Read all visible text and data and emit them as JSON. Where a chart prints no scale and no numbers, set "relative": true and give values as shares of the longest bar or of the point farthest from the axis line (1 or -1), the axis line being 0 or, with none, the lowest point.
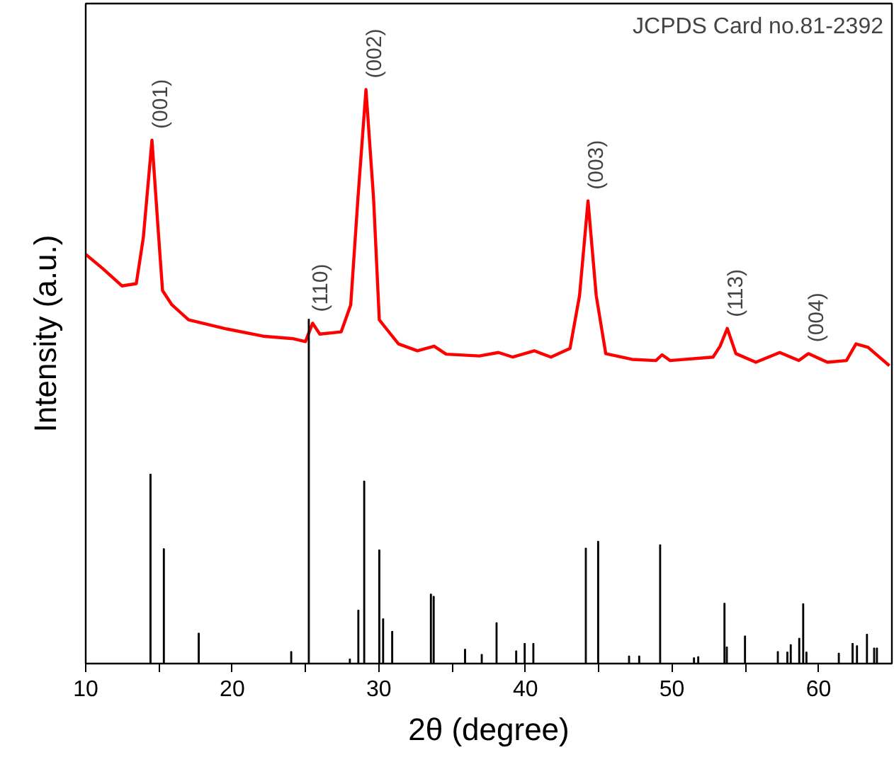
{
  "chart_data": {
    "type": "line",
    "relative": true,
    "xlabel": "2θ (degree)",
    "ylabel": "Intensity (a.u.)",
    "xlim": [
      10,
      65
    ],
    "xticks": [
      10,
      {
        "value": 15,
        "label": null
      },
      20,
      {
        "value": 25,
        "label": null
      },
      30,
      {
        "value": 35,
        "label": null
      },
      40,
      {
        "value": 45,
        "label": null
      },
      50,
      {
        "value": 55,
        "label": null
      },
      60
    ],
    "tick_labels": "x",
    "grid": false,
    "marker": "none",
    "line_style": "solid",
    "series": [
      {
        "color": "#ff0000",
        "x": [
          10.0,
          11.17,
          12.47,
          13.45,
          13.93,
          14.52,
          14.91,
          15.24,
          15.88,
          17.02,
          19.63,
          22.22,
          24.18,
          24.99,
          25.48,
          25.97,
          27.43,
          28.08,
          28.57,
          29.12,
          29.64,
          30.03,
          30.52,
          31.34,
          32.63,
          33.77,
          34.59,
          36.86,
          38.16,
          39.14,
          40.6,
          41.74,
          43.04,
          43.69,
          44.27,
          44.83,
          45.48,
          47.27,
          48.9,
          49.32,
          49.87,
          52.8,
          53.28,
          53.77,
          54.36,
          55.72,
          57.35,
          58.65,
          59.3,
          60.6,
          61.9,
          62.55,
          63.37,
          64.83
        ],
        "values": [
          0.713,
          0.688,
          0.658,
          0.662,
          0.742,
          0.912,
          0.768,
          0.65,
          0.625,
          0.599,
          0.583,
          0.57,
          0.566,
          0.561,
          0.593,
          0.574,
          0.578,
          0.625,
          0.81,
          1.0,
          0.81,
          0.599,
          0.583,
          0.557,
          0.545,
          0.553,
          0.539,
          0.536,
          0.542,
          0.534,
          0.545,
          0.534,
          0.549,
          0.641,
          0.806,
          0.641,
          0.54,
          0.53,
          0.528,
          0.538,
          0.528,
          0.534,
          0.553,
          0.584,
          0.54,
          0.525,
          0.542,
          0.528,
          0.54,
          0.525,
          0.528,
          0.557,
          0.551,
          0.519
        ]
      },
      {
        "type": "bar",
        "color": "#000000",
        "x": [
          14.42,
          15.33,
          17.71,
          24.02,
          25.22,
          28.02,
          28.6,
          29.0,
          30.03,
          30.29,
          30.91,
          33.55,
          33.74,
          35.88,
          37.02,
          38.03,
          39.37,
          39.95,
          40.54,
          44.12,
          44.96,
          47.07,
          47.76,
          49.19,
          51.5,
          51.79,
          53.58,
          53.74,
          54.98,
          57.22,
          57.87,
          58.1,
          58.68,
          58.95,
          59.17,
          61.38,
          62.32,
          62.62,
          63.3,
          63.79,
          63.98
        ],
        "values": [
          0.33,
          0.2,
          0.053,
          0.021,
          0.6,
          0.008,
          0.093,
          0.318,
          0.198,
          0.078,
          0.056,
          0.121,
          0.117,
          0.025,
          0.016,
          0.071,
          0.022,
          0.035,
          0.035,
          0.201,
          0.213,
          0.013,
          0.013,
          0.207,
          0.01,
          0.012,
          0.105,
          0.029,
          0.048,
          0.021,
          0.02,
          0.033,
          0.044,
          0.104,
          0.02,
          0.018,
          0.035,
          0.031,
          0.051,
          0.027,
          0.027
        ]
      }
    ],
    "annotations": [
      "JCPDS Card no.81-2392",
      {
        "text": "(001)",
        "x": 14.52,
        "y": 0.912
      },
      {
        "text": "(110)",
        "x": 25.48,
        "y": 0.593
      },
      {
        "text": "(002)",
        "x": 29.12,
        "y": 1.0
      },
      {
        "text": "(003)",
        "x": 44.27,
        "y": 0.806
      },
      {
        "text": "(113)",
        "x": 53.77,
        "y": 0.584
      },
      {
        "text": "(004)",
        "x": 59.3,
        "y": 0.54
      }
    ]
  }
}
